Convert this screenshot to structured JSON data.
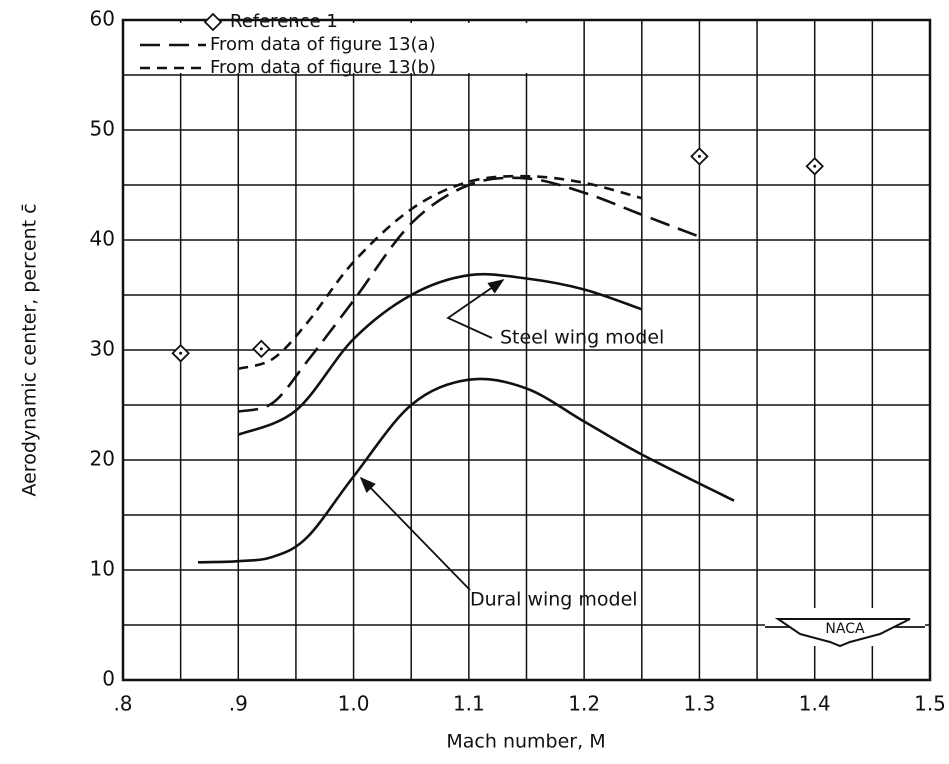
{
  "chart_data": {
    "type": "line",
    "xlabel": "Mach number, M",
    "ylabel": "Aerodynamic center, percent c̄",
    "xlim": [
      0.8,
      1.5
    ],
    "xticks": [
      {
        "value": 0.8,
        "label": ".8"
      },
      {
        "value": 0.9,
        "label": ".9"
      },
      {
        "value": 1.0,
        "label": "1.0"
      },
      1.1,
      1.2,
      1.3,
      1.4,
      1.5
    ],
    "x_minor_ticks": [
      0.85,
      0.95,
      1.05,
      1.15,
      1.25,
      1.35,
      1.45
    ],
    "ylim": [
      0,
      60
    ],
    "yticks": [
      0,
      10,
      20,
      30,
      40,
      50,
      60
    ],
    "y_minor_ticks": [
      5,
      15,
      25,
      35,
      45,
      55
    ],
    "grid": true,
    "legend": "upper left",
    "logo": "NACA",
    "series": [
      {
        "name": "Reference 1",
        "style": "diamond",
        "color": "#111111",
        "in_legend": true,
        "x": [
          0.85,
          0.92,
          1.3,
          1.4
        ],
        "values": [
          29.7,
          30.1,
          47.6,
          46.7
        ]
      },
      {
        "name": "From data of figure 13(a)",
        "style": "long-dash",
        "color": "#111111",
        "in_legend": true,
        "x": [
          0.9,
          0.93,
          0.96,
          1.0,
          1.05,
          1.1,
          1.15,
          1.2,
          1.25,
          1.3
        ],
        "values": [
          24.4,
          25.2,
          29,
          34.5,
          41.5,
          45,
          45.6,
          44.3,
          42.3,
          40.3
        ]
      },
      {
        "name": "From data of figure 13(b)",
        "style": "short-dash",
        "color": "#111111",
        "in_legend": true,
        "x": [
          0.9,
          0.93,
          0.96,
          1.0,
          1.05,
          1.1,
          1.15,
          1.2,
          1.25
        ],
        "values": [
          28.3,
          29.2,
          32.5,
          38,
          42.8,
          45.3,
          45.8,
          45.2,
          43.8
        ]
      },
      {
        "name": "Steel wing model",
        "style": "solid",
        "color": "#111111",
        "in_legend": false,
        "x": [
          0.9,
          0.95,
          1.0,
          1.05,
          1.1,
          1.15,
          1.2,
          1.25
        ],
        "values": [
          22.3,
          24.5,
          31,
          35,
          36.8,
          36.5,
          35.5,
          33.7
        ]
      },
      {
        "name": "Dural wing model",
        "style": "solid",
        "color": "#111111",
        "in_legend": false,
        "x": [
          0.865,
          0.9,
          0.93,
          0.96,
          1.0,
          1.05,
          1.1,
          1.15,
          1.2,
          1.25,
          1.33
        ],
        "values": [
          10.7,
          10.8,
          11.2,
          13,
          18.5,
          25,
          27.3,
          26.5,
          23.5,
          20.5,
          16.3
        ]
      }
    ]
  }
}
